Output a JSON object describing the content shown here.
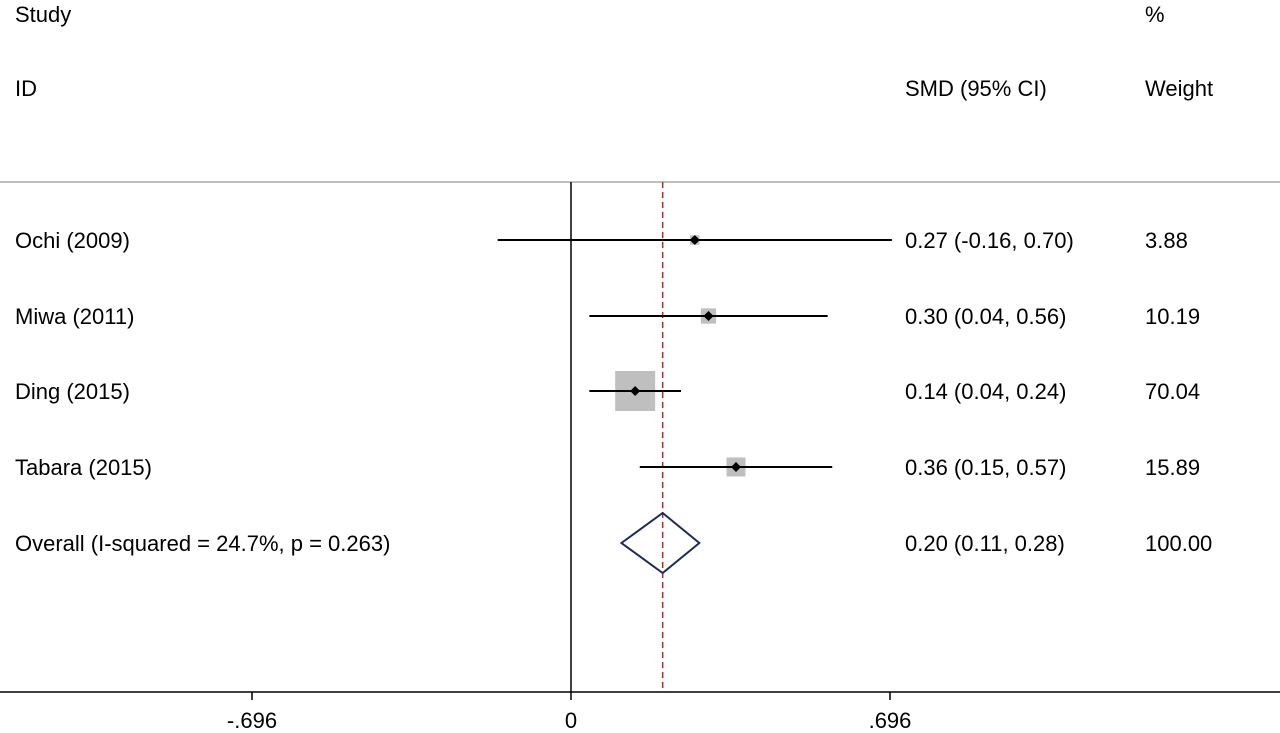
{
  "header": {
    "study_label": "Study",
    "id_label": "ID",
    "effect_label": "SMD (95% CI)",
    "weight_label_top": "%",
    "weight_label_bottom": "Weight"
  },
  "chart_data": {
    "type": "forest",
    "xlim": [
      -0.696,
      0.696
    ],
    "x_ticks": [
      {
        "value": -0.696,
        "label": "-.696"
      },
      {
        "value": 0,
        "label": "0"
      },
      {
        "value": 0.696,
        "label": ".696"
      }
    ],
    "null_line": 0,
    "studies": [
      {
        "id": "Ochi (2009)",
        "smd": 0.27,
        "lo": -0.16,
        "hi": 0.7,
        "ci_text": "0.27 (-0.16, 0.70)",
        "weight": 3.88,
        "weight_text": "3.88"
      },
      {
        "id": "Miwa (2011)",
        "smd": 0.3,
        "lo": 0.04,
        "hi": 0.56,
        "ci_text": "0.30 (0.04, 0.56)",
        "weight": 10.19,
        "weight_text": "10.19"
      },
      {
        "id": "Ding (2015)",
        "smd": 0.14,
        "lo": 0.04,
        "hi": 0.24,
        "ci_text": "0.14 (0.04, 0.24)",
        "weight": 70.04,
        "weight_text": "70.04"
      },
      {
        "id": "Tabara (2015)",
        "smd": 0.36,
        "lo": 0.15,
        "hi": 0.57,
        "ci_text": "0.36 (0.15, 0.57)",
        "weight": 15.89,
        "weight_text": "15.89"
      }
    ],
    "overall": {
      "id": "Overall  (I-squared = 24.7%, p = 0.263)",
      "smd": 0.2,
      "lo": 0.11,
      "hi": 0.28,
      "ci_text": "0.20 (0.11, 0.28)",
      "weight_text": "100.00"
    },
    "colors": {
      "ci_line": "#000000",
      "weight_box": "#bfbfbf",
      "diamond": "#1f2a5a",
      "overall_line": "#a0322d",
      "rule": "#aaaaaa",
      "axis": "#000000"
    }
  }
}
